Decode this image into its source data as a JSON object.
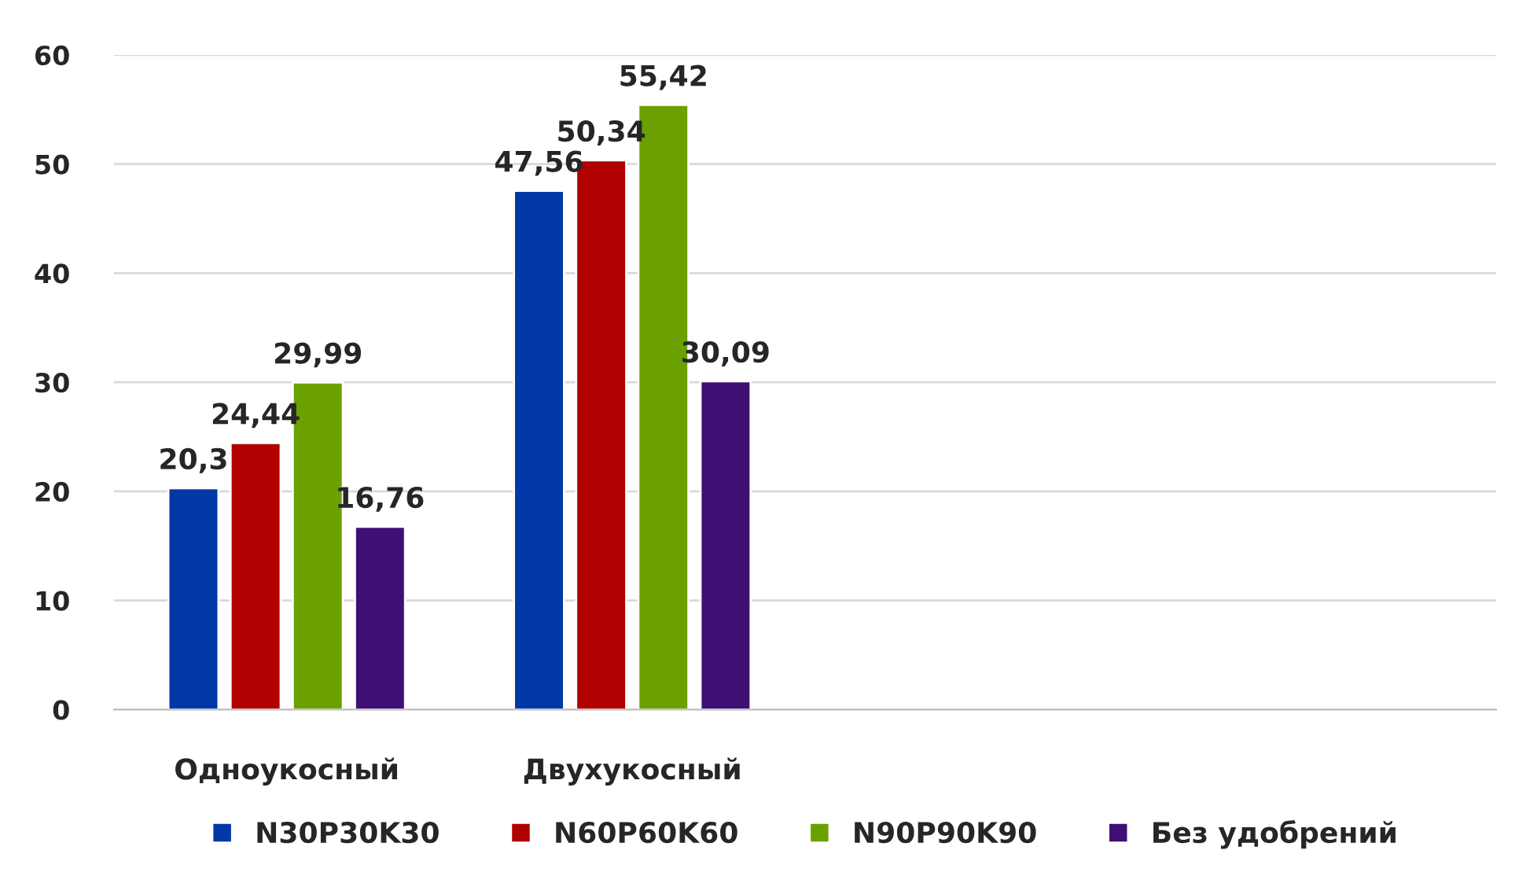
{
  "chart_data": {
    "type": "bar",
    "categories": [
      "Одноукосный",
      "Двухукосный",
      null,
      null
    ],
    "series": [
      {
        "name": "N30P30K30",
        "color": "#0039a6",
        "values": [
          20.3,
          47.56,
          null,
          null
        ],
        "value_labels": [
          "20,3",
          "47,56",
          null,
          null
        ]
      },
      {
        "name": "N60P60K60",
        "color": "#b00000",
        "values": [
          24.44,
          50.34,
          null,
          null
        ],
        "value_labels": [
          "24,44",
          "50,34",
          null,
          null
        ]
      },
      {
        "name": "N90P90K90",
        "color": "#6aa100",
        "values": [
          29.99,
          55.42,
          null,
          null
        ],
        "value_labels": [
          "29,99",
          "55,42",
          null,
          null
        ]
      },
      {
        "name": "Без удобрений",
        "color": "#3f0f73",
        "values": [
          16.76,
          30.09,
          null,
          null
        ],
        "value_labels": [
          "16,76",
          "30,09",
          null,
          null
        ]
      }
    ],
    "ylim": [
      0,
      60
    ],
    "yticks": [
      0,
      10,
      20,
      30,
      40,
      50,
      60
    ],
    "grid": "y",
    "legend": "bottom"
  }
}
